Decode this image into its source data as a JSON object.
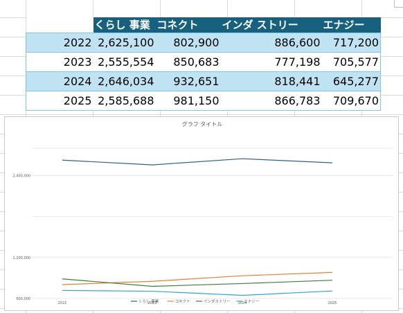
{
  "table": {
    "headers": [
      "",
      "くらし 事業",
      "コネクト",
      "インダ ストリー",
      "エナジー"
    ],
    "rows": [
      [
        "2022",
        "2,625,100",
        "802,900",
        "886,600",
        "717,200"
      ],
      [
        "2023",
        "2,555,554",
        "850,683",
        "777,198",
        "705,577"
      ],
      [
        "2024",
        "2,646,034",
        "932,651",
        "818,441",
        "645,277"
      ],
      [
        "2025",
        "2,585,688",
        "981,150",
        "866,783",
        "709,670"
      ]
    ]
  },
  "chart_data": {
    "type": "line",
    "title": "グラフ タイトル",
    "categories": [
      "2022",
      "2023",
      "2024",
      "2025"
    ],
    "y_tick_labels": [
      "600,000",
      "1,200,000",
      "2,400,000"
    ],
    "ylim": [
      600000,
      2800000
    ],
    "grid": true,
    "legend_position": "bottom",
    "series": [
      {
        "name": "くらし 事業",
        "color": "#2e5f8a",
        "values": [
          2625100,
          2555554,
          2646034,
          2585688
        ]
      },
      {
        "name": "コネクト",
        "color": "#ed7d31",
        "values": [
          802900,
          850683,
          932651,
          981150
        ]
      },
      {
        "name": "インダストリー",
        "color": "#3a7d3a",
        "values": [
          886600,
          777198,
          818441,
          866783
        ]
      },
      {
        "name": "エナジー",
        "color": "#2aa7d8",
        "values": [
          717200,
          705577,
          645277,
          709670
        ]
      }
    ]
  }
}
